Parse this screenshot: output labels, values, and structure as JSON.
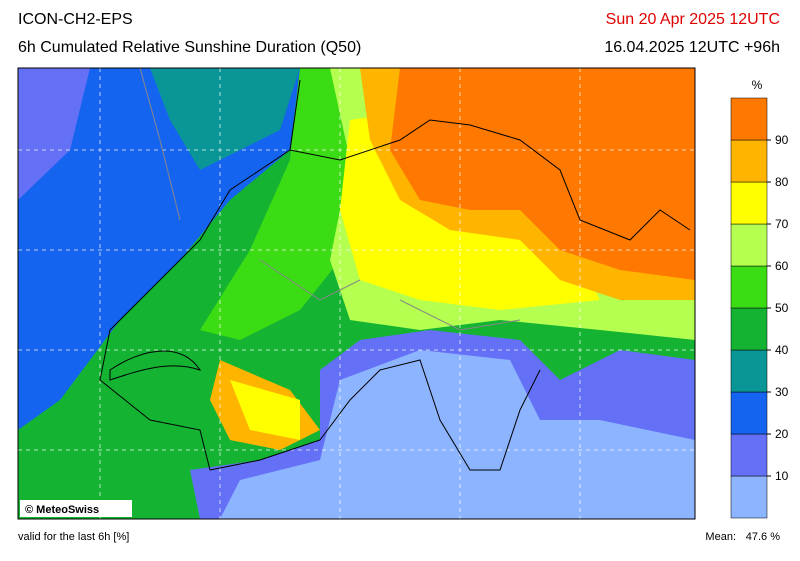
{
  "header": {
    "model": "ICON-CH2-EPS",
    "title": "6h Cumulated Relative Sunshine Duration (Q50)",
    "valid_time": "Sun 20 Apr 2025 12UTC",
    "run": "16.04.2025 12UTC +96h"
  },
  "map": {
    "copyright": "© MeteoSwiss"
  },
  "colorbar": {
    "unit": "%",
    "ticks": [
      10,
      20,
      30,
      40,
      50,
      60,
      70,
      80,
      90
    ],
    "colors": [
      "#8cb4ff",
      "#6470f5",
      "#1464f0",
      "#0a9696",
      "#14b432",
      "#3cdc14",
      "#b4ff50",
      "#ffff00",
      "#ffb400",
      "#ff7800"
    ]
  },
  "footer": {
    "note": "valid for the last 6h [%]",
    "mean_label": "Mean:",
    "mean_value": "47.6 %"
  }
}
